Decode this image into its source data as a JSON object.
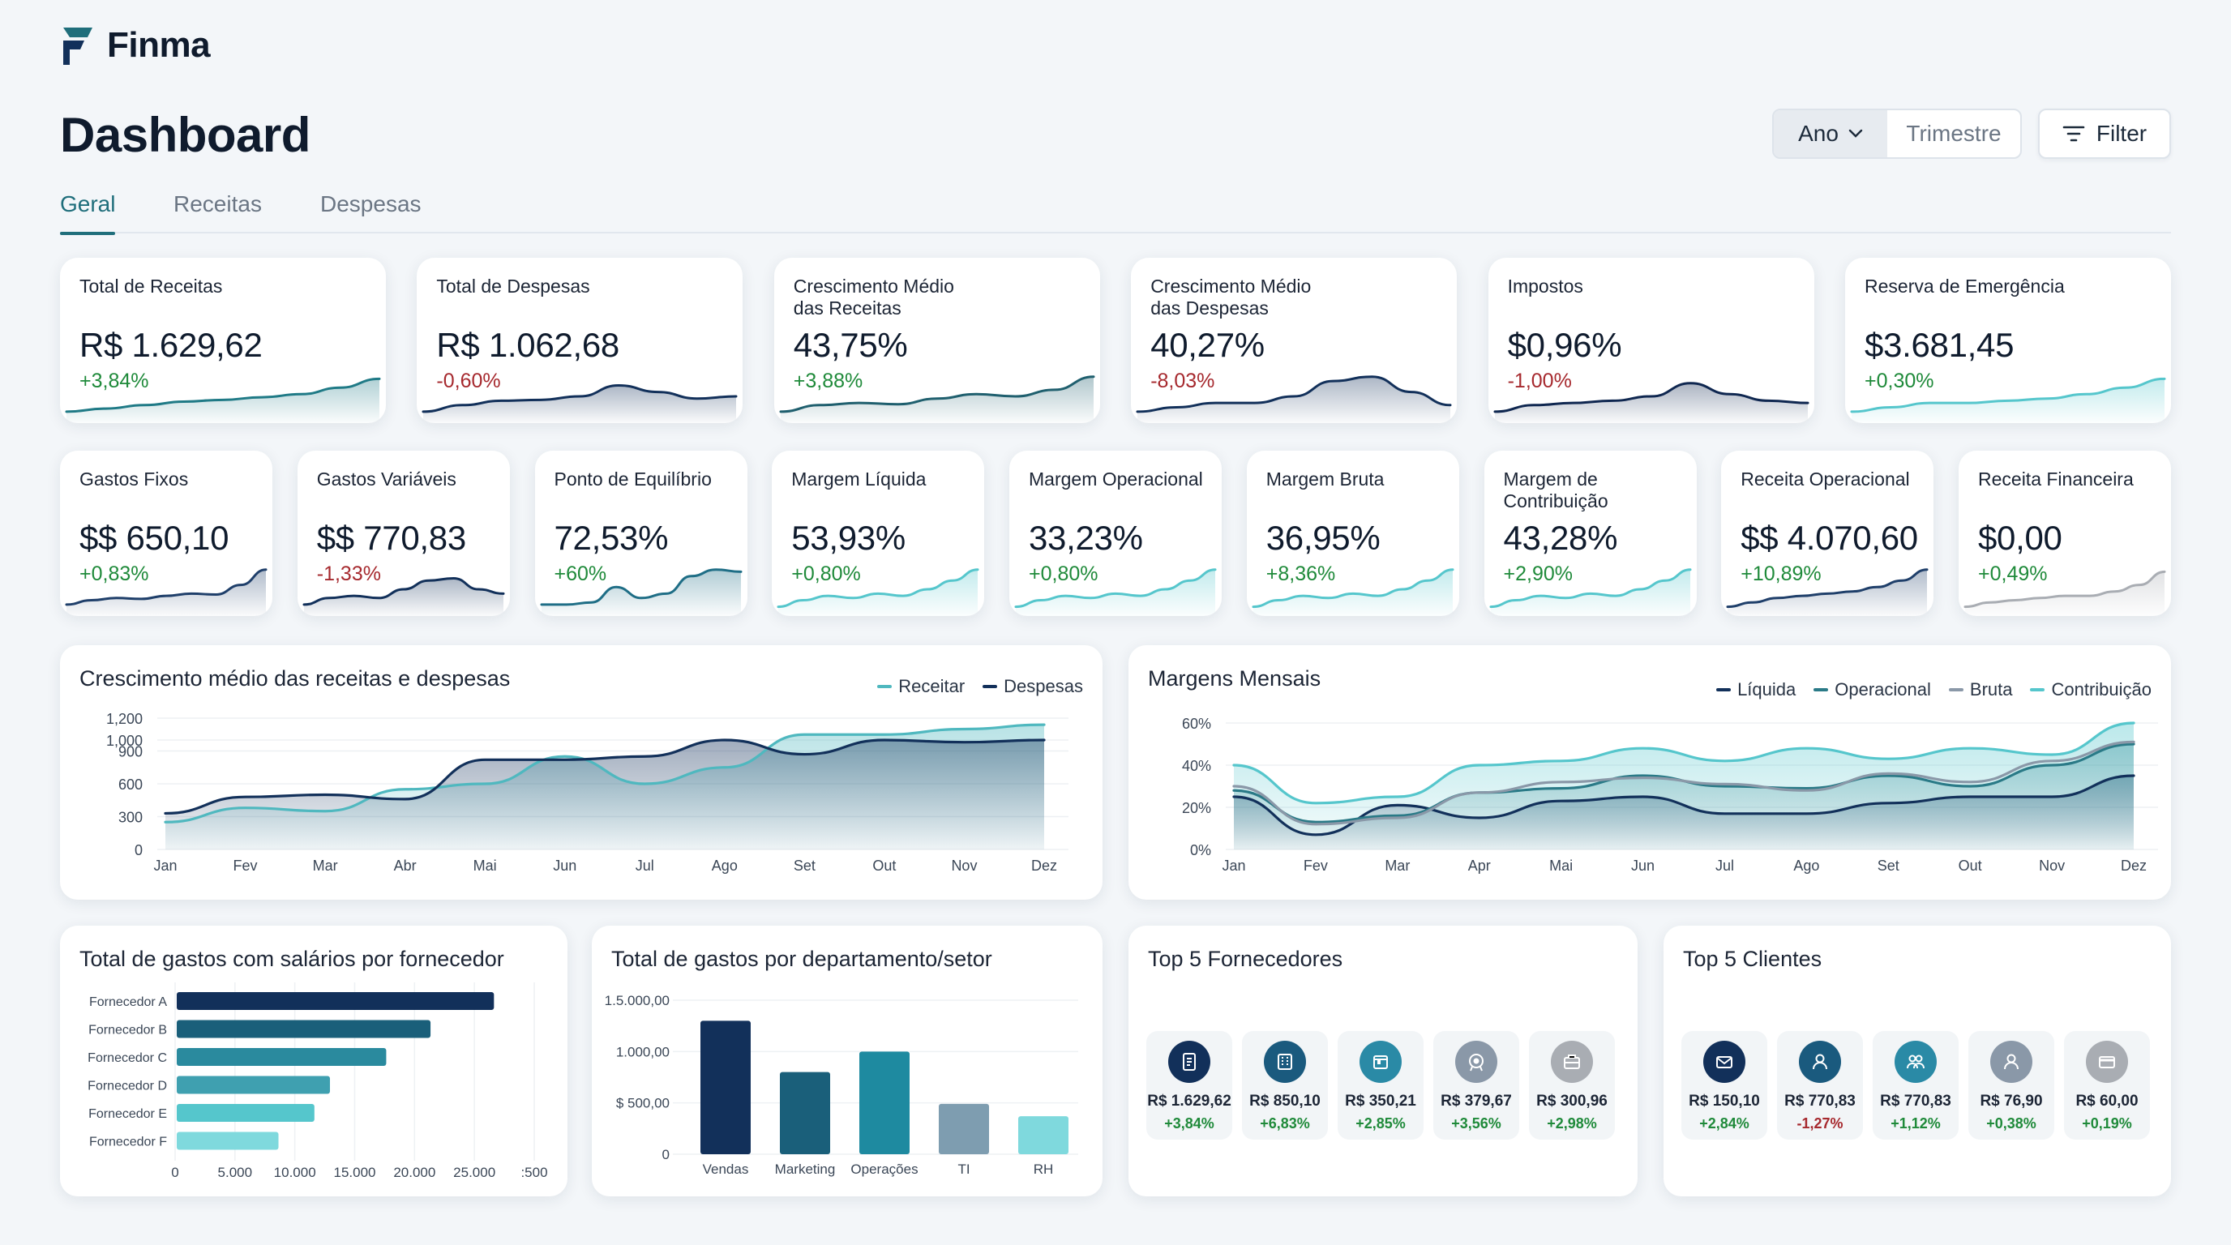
{
  "brand": {
    "name": "Finma"
  },
  "page_title": "Dashboard",
  "period": {
    "selected": "Ano",
    "other": "Trimestre"
  },
  "filter_label": "Filter",
  "tabs": [
    {
      "label": "Geral",
      "active": true
    },
    {
      "label": "Receitas",
      "active": false
    },
    {
      "label": "Despesas",
      "active": false
    }
  ],
  "kpis_row1": [
    {
      "label": "Total de Receitas",
      "value": "R$ 1.629,62",
      "change": "+3,84%",
      "positive": true,
      "spark": [
        0.15,
        0.22,
        0.3,
        0.38,
        0.42,
        0.48,
        0.55,
        0.7,
        0.9
      ],
      "color": "#1f7a86"
    },
    {
      "label": "Total de Despesas",
      "value": "R$ 1.062,68",
      "change": "-0,60%",
      "positive": false,
      "spark": [
        0.15,
        0.3,
        0.4,
        0.42,
        0.5,
        0.75,
        0.6,
        0.45,
        0.5
      ],
      "color": "#12305a"
    },
    {
      "label": "Crescimento Médio\ndas Receitas",
      "value": "43,75%",
      "change": "+3,88%",
      "positive": true,
      "spark": [
        0.15,
        0.3,
        0.35,
        0.32,
        0.45,
        0.55,
        0.5,
        0.65,
        0.95
      ],
      "color": "#1f5f6e"
    },
    {
      "label": "Crescimento Médio\ndas Despesas",
      "value": "40,27%",
      "change": "-8,03%",
      "positive": false,
      "spark": [
        0.15,
        0.25,
        0.35,
        0.35,
        0.5,
        0.85,
        0.95,
        0.6,
        0.3
      ],
      "color": "#12305a"
    },
    {
      "label": "Impostos",
      "value": "$0,96%",
      "change": "-1,00%",
      "positive": false,
      "spark": [
        0.15,
        0.3,
        0.35,
        0.4,
        0.5,
        0.8,
        0.55,
        0.4,
        0.35
      ],
      "color": "#0f2750"
    },
    {
      "label": "Reserva de Emergência",
      "value": "$3.681,45",
      "change": "+0,30%",
      "positive": true,
      "spark": [
        0.15,
        0.25,
        0.35,
        0.35,
        0.4,
        0.45,
        0.55,
        0.7,
        0.9
      ],
      "color": "#55c6cc"
    }
  ],
  "kpis_row2": [
    {
      "label": "Gastos Fixos",
      "value": "$$ 650,10",
      "change": "+0,83%",
      "positive": true,
      "spark": [
        0.15,
        0.25,
        0.3,
        0.28,
        0.35,
        0.4,
        0.38,
        0.6,
        0.95
      ],
      "color": "#1f3f6a"
    },
    {
      "label": "Gastos Variáveis",
      "value": "$$ 770,83",
      "change": "-1,33%",
      "positive": false,
      "spark": [
        0.15,
        0.3,
        0.35,
        0.3,
        0.5,
        0.7,
        0.75,
        0.5,
        0.4
      ],
      "color": "#12305a"
    },
    {
      "label": "Ponto de Equilíbrio",
      "value": "72,53%",
      "change": "+60%",
      "positive": true,
      "spark": [
        0.15,
        0.15,
        0.2,
        0.55,
        0.3,
        0.4,
        0.8,
        0.95,
        0.9
      ],
      "color": "#1f6e86"
    },
    {
      "label": "Margem Líquida",
      "value": "53,93%",
      "change": "+0,80%",
      "positive": true,
      "spark": [
        0.1,
        0.25,
        0.35,
        0.3,
        0.4,
        0.35,
        0.5,
        0.7,
        0.95
      ],
      "color": "#55c6cc"
    },
    {
      "label": "Margem Operacional",
      "value": "33,23%",
      "change": "+0,80%",
      "positive": true,
      "spark": [
        0.1,
        0.25,
        0.35,
        0.3,
        0.4,
        0.35,
        0.5,
        0.7,
        0.95
      ],
      "color": "#55c6cc"
    },
    {
      "label": "Margem Bruta",
      "value": "36,95%",
      "change": "+8,36%",
      "positive": true,
      "spark": [
        0.1,
        0.25,
        0.35,
        0.3,
        0.4,
        0.35,
        0.5,
        0.7,
        0.95
      ],
      "color": "#55c6cc"
    },
    {
      "label": "Margem de\nContribuição",
      "value": "43,28%",
      "change": "+2,90%",
      "positive": true,
      "spark": [
        0.1,
        0.25,
        0.35,
        0.3,
        0.4,
        0.35,
        0.5,
        0.7,
        0.95
      ],
      "color": "#55c6cc"
    },
    {
      "label": "Receita Operacional",
      "value": "$$ 4.070,60",
      "change": "+10,89%",
      "positive": true,
      "spark": [
        0.1,
        0.2,
        0.3,
        0.35,
        0.4,
        0.45,
        0.55,
        0.7,
        0.95
      ],
      "color": "#1f3f6a"
    },
    {
      "label": "Receita Financeira",
      "value": "$0,00",
      "change": "+0,49%",
      "positive": true,
      "spark": [
        0.1,
        0.2,
        0.25,
        0.3,
        0.35,
        0.35,
        0.45,
        0.6,
        0.9
      ],
      "color": "#a9adb3"
    }
  ],
  "chart_growth": {
    "title": "Crescimento médio das receitas e despesas",
    "legend": [
      "Receitar",
      "Despesas"
    ],
    "chart_data": {
      "type": "area",
      "categories": [
        "Jan",
        "Fev",
        "Mar",
        "Abr",
        "Mai",
        "Jun",
        "Jul",
        "Ago",
        "Set",
        "Out",
        "Nov",
        "Dez"
      ],
      "yticks": [
        "0",
        "300",
        "600",
        "900",
        "1,000",
        "1,200"
      ],
      "ytick_values": [
        0,
        300,
        600,
        900,
        1000,
        1200
      ],
      "ylim": [
        0,
        1200
      ],
      "series": [
        {
          "name": "Receitar",
          "color": "#4fb8bf",
          "values": [
            250,
            380,
            350,
            550,
            600,
            850,
            600,
            750,
            1050,
            1050,
            1100,
            1140
          ]
        },
        {
          "name": "Despesas",
          "color": "#12305a",
          "values": [
            330,
            480,
            500,
            460,
            820,
            820,
            850,
            1000,
            870,
            1000,
            980,
            1000
          ]
        }
      ]
    }
  },
  "chart_margins": {
    "title": "Margens Mensais",
    "legend": [
      "Líquida",
      "Operacional",
      "Bruta",
      "Contribuição"
    ],
    "chart_data": {
      "type": "line",
      "categories": [
        "Jan",
        "Fev",
        "Mar",
        "Apr",
        "Mai",
        "Jun",
        "Jul",
        "Ago",
        "Set",
        "Out",
        "Nov",
        "Dez"
      ],
      "yticks": [
        "0%",
        "20%",
        "40%",
        "60%"
      ],
      "ytick_values": [
        0,
        20,
        40,
        60
      ],
      "ylim": [
        0,
        60
      ],
      "series": [
        {
          "name": "Líquida",
          "color": "#12305a",
          "values": [
            25,
            7,
            21,
            15,
            23,
            25,
            17,
            17,
            22,
            25,
            25,
            35
          ]
        },
        {
          "name": "Operacional",
          "color": "#2a7a87",
          "values": [
            28,
            13,
            16,
            27,
            29,
            35,
            30,
            29,
            35,
            30,
            40,
            50
          ]
        },
        {
          "name": "Bruta",
          "color": "#8a98a8",
          "values": [
            30,
            12,
            15,
            27,
            32,
            34,
            31,
            28,
            36,
            32,
            42,
            51
          ]
        },
        {
          "name": "Contribuição",
          "color": "#55c6cc",
          "values": [
            40,
            22,
            25,
            40,
            42,
            48,
            42,
            48,
            43,
            48,
            45,
            60
          ]
        }
      ]
    }
  },
  "chart_salaries": {
    "title": "Total de gastos com salários por fornecedor",
    "chart_data": {
      "type": "bar",
      "orientation": "horizontal",
      "categories": [
        "Fornecedor A",
        "Fornecedor B",
        "Fornecedor C",
        "Fornecedor D",
        "Fornecedor E",
        "Fornecedor F"
      ],
      "values": [
        26500,
        21200,
        17500,
        12800,
        11500,
        8500
      ],
      "colors": [
        "#12305a",
        "#1a5f7a",
        "#2a8a9e",
        "#3fa0b0",
        "#55c6cc",
        "#7fd9dd"
      ],
      "xticks": [
        "0",
        "5.000",
        "10.000",
        "15.000",
        "20.000",
        "25.000",
        ":500"
      ],
      "xtick_values": [
        0,
        5000,
        10000,
        15000,
        20000,
        25000,
        30000
      ],
      "xlim": [
        0,
        30000
      ]
    }
  },
  "chart_departments": {
    "title": "Total de gastos por departamento/setor",
    "chart_data": {
      "type": "bar",
      "categories": [
        "Vendas",
        "Marketing",
        "Operações",
        "TI",
        "RH"
      ],
      "values": [
        1300,
        800,
        1000,
        490,
        370
      ],
      "colors": [
        "#12305a",
        "#1a5f7a",
        "#1e8aa0",
        "#7e9db0",
        "#7fd9dd"
      ],
      "yticks": [
        "0",
        "$ 500,00",
        "1.000,00",
        "1.5.000,00"
      ],
      "ytick_values": [
        0,
        500,
        1000,
        1500
      ],
      "ylim": [
        0,
        1500
      ]
    }
  },
  "top_suppliers": {
    "title": "Top 5 Fornecedores",
    "items": [
      {
        "value": "R$ 1.629,62",
        "change": "+3,84%",
        "positive": true,
        "icon": "receipt-icon",
        "color": "#12305a"
      },
      {
        "value": "R$ 850,10",
        "change": "+6,83%",
        "positive": true,
        "icon": "building-icon",
        "color": "#1a5a7e"
      },
      {
        "value": "R$ 350,21",
        "change": "+2,85%",
        "positive": true,
        "icon": "store-icon",
        "color": "#2a8aa6"
      },
      {
        "value": "R$ 379,67",
        "change": "+3,56%",
        "positive": true,
        "icon": "badge-icon",
        "color": "#8a98a8"
      },
      {
        "value": "R$ 300,96",
        "change": "+2,98%",
        "positive": true,
        "icon": "briefcase-icon",
        "color": "#a9adb3"
      }
    ]
  },
  "top_clients": {
    "title": "Top 5 Clientes",
    "items": [
      {
        "value": "R$ 150,10",
        "change": "+2,84%",
        "positive": true,
        "icon": "mail-icon",
        "color": "#12305a"
      },
      {
        "value": "R$ 770,83",
        "change": "-1,27%",
        "positive": false,
        "icon": "user-icon",
        "color": "#1a5a7e"
      },
      {
        "value": "R$ 770,83",
        "change": "+1,12%",
        "positive": true,
        "icon": "users-icon",
        "color": "#2a8aa6"
      },
      {
        "value": "R$ 76,90",
        "change": "+0,38%",
        "positive": true,
        "icon": "user-icon",
        "color": "#8a98a8"
      },
      {
        "value": "R$ 60,00",
        "change": "+0,19%",
        "positive": true,
        "icon": "card-icon",
        "color": "#a9adb3"
      }
    ]
  }
}
